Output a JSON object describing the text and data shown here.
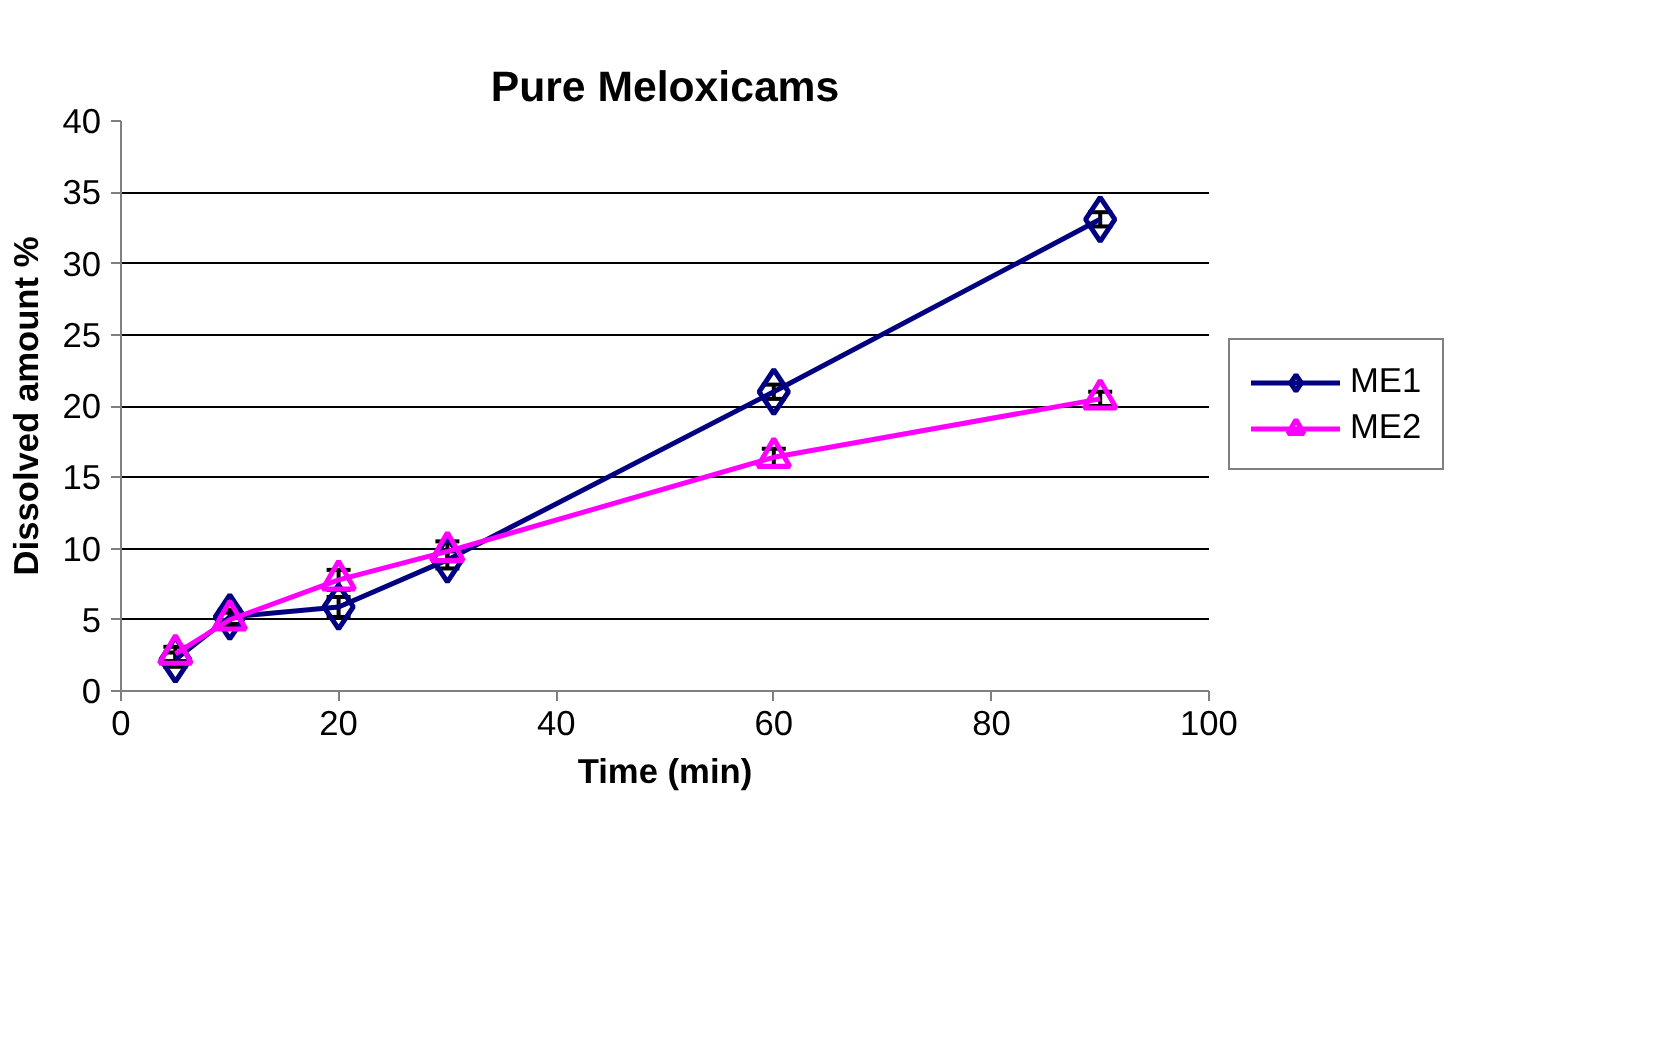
{
  "chart_data": {
    "type": "line",
    "title": "Pure Meloxicams",
    "xlabel": "Time (min)",
    "ylabel": "Dissolved amount %",
    "x": [
      5,
      10,
      20,
      30,
      60,
      90
    ],
    "series": [
      {
        "name": "ME1",
        "color": "#000080",
        "marker": "diamond",
        "values": [
          2.2,
          5.2,
          5.9,
          9.2,
          21,
          33.1
        ],
        "errors": [
          0.5,
          0.5,
          0.7,
          0.6,
          0.5,
          0.5
        ]
      },
      {
        "name": "ME2",
        "color": "#ff00ff",
        "marker": "triangle",
        "values": [
          2.6,
          5.0,
          7.8,
          9.8,
          16.4,
          20.5
        ],
        "errors": [
          0.5,
          0.5,
          0.7,
          0.7,
          0.6,
          0.5
        ]
      }
    ],
    "xlim": [
      0,
      100
    ],
    "xticks": [
      0,
      20,
      40,
      60,
      80,
      100
    ],
    "ylim": [
      0,
      40
    ],
    "yticks": [
      0,
      5,
      10,
      15,
      20,
      25,
      30,
      35,
      40
    ],
    "grid": "y",
    "legend": "right",
    "line_style": "solid"
  }
}
